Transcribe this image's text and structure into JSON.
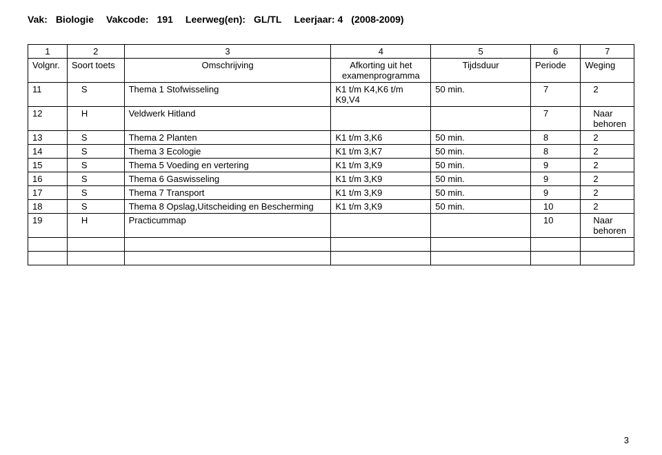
{
  "header": {
    "vak_label": "Vak:",
    "vak_value": "Biologie",
    "vakcode_label": "Vakcode:",
    "vakcode_value": "191",
    "leerweg_label": "Leerweg(en):",
    "leerweg_value": "GL/TL",
    "leerjaar_label": "Leerjaar: 4",
    "leerjaar_value": "(2008-2009)"
  },
  "table": {
    "num_row": {
      "c1": "1",
      "c2": "2",
      "c3": "3",
      "c4": "4",
      "c5": "5",
      "c6": "6",
      "c7": "7"
    },
    "label_row": {
      "c1": "Volgnr.",
      "c2": "Soort toets",
      "c3": "Omschrijving",
      "c4": "Afkorting uit het examenprogramma",
      "c5": "Tijdsduur",
      "c6": "Periode",
      "c7": "Weging"
    },
    "rows": [
      {
        "c1": "11",
        "c2": "S",
        "c3": "Thema 1 Stofwisseling",
        "c4": "K1 t/m K4,K6 t/m K9,V4",
        "c5": "50 min.",
        "c6": "7",
        "c7": "2"
      },
      {
        "c1": "12",
        "c2": "H",
        "c3": "Veldwerk Hitland",
        "c4": "",
        "c5": "",
        "c6": "7",
        "c7": "Naar behoren"
      },
      {
        "c1": "13",
        "c2": "S",
        "c3": "Thema 2 Planten",
        "c4": "K1 t/m 3,K6",
        "c5": "50  min.",
        "c6": "8",
        "c7": "2"
      },
      {
        "c1": "14",
        "c2": "S",
        "c3": "Thema 3 Ecologie",
        "c4": "K1 t/m 3,K7",
        "c5": "50  min.",
        "c6": "8",
        "c7": "2"
      },
      {
        "c1": "15",
        "c2": "S",
        "c3": "Thema 5 Voeding en vertering",
        "c4": "K1 t/m 3,K9",
        "c5": "50 min.",
        "c6": "9",
        "c7": "2"
      },
      {
        "c1": "16",
        "c2": "S",
        "c3": "Thema 6 Gaswisseling",
        "c4": "K1 t/m 3,K9",
        "c5": "50 min.",
        "c6": "9",
        "c7": "2"
      },
      {
        "c1": "17",
        "c2": "S",
        "c3": "Thema 7 Transport",
        "c4": "K1 t/m 3,K9",
        "c5": "50 min.",
        "c6": "9",
        "c7": "2"
      },
      {
        "c1": "18",
        "c2": "S",
        "c3": "Thema 8 Opslag,Uitscheiding en Bescherming",
        "c4": "K1 t/m 3,K9",
        "c5": "50 min.",
        "c6": "10",
        "c7": "2"
      },
      {
        "c1": "19",
        "c2": "H",
        "c3": "Practicummap",
        "c4": "",
        "c5": "",
        "c6": "10",
        "c7": "Naar behoren"
      },
      {
        "c1": "",
        "c2": "",
        "c3": "",
        "c4": "",
        "c5": "",
        "c6": "",
        "c7": ""
      },
      {
        "c1": "",
        "c2": "",
        "c3": "",
        "c4": "",
        "c5": "",
        "c6": "",
        "c7": ""
      }
    ]
  },
  "page_number": "3"
}
